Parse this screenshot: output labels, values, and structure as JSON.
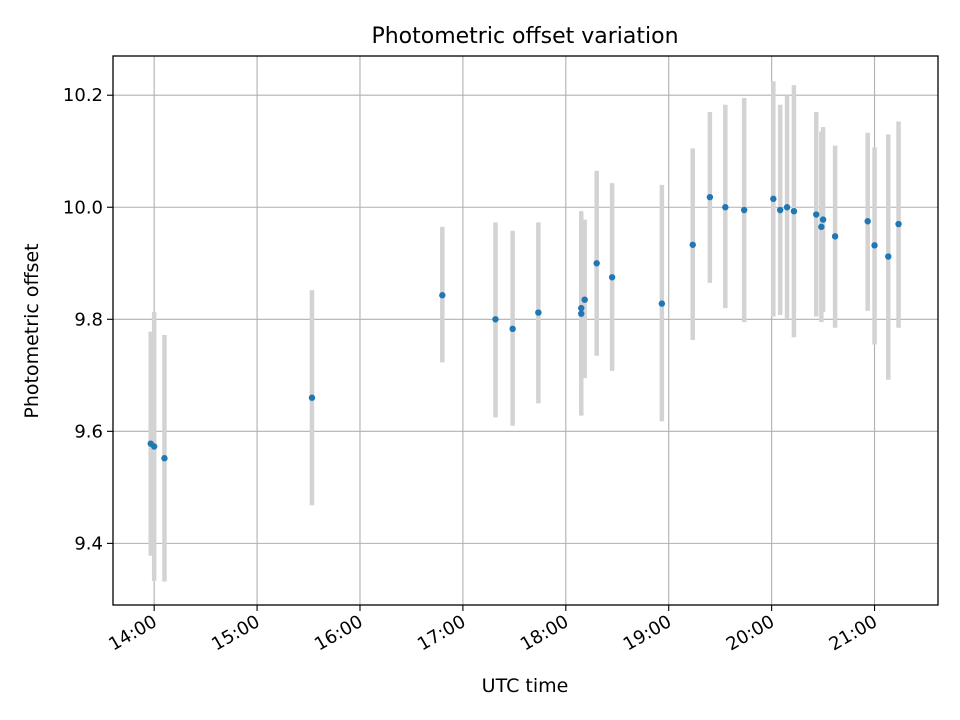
{
  "chart_data": {
    "type": "scatter",
    "title": "Photometric offset variation",
    "xlabel": "UTC time",
    "ylabel": "Photometric offset",
    "xlim": [
      "13:36",
      "21:37"
    ],
    "ylim": [
      9.29,
      10.27
    ],
    "grid": true,
    "x_ticks": [
      "14:00",
      "15:00",
      "16:00",
      "17:00",
      "18:00",
      "19:00",
      "20:00",
      "21:00"
    ],
    "y_ticks": [
      9.4,
      9.6,
      9.8,
      10.0,
      10.2
    ],
    "y_tick_labels": [
      "9.4",
      "9.6",
      "9.8",
      "10.0",
      "10.2"
    ],
    "colors": {
      "marker": "#1f77b4",
      "errorbar": "#d3d3d3",
      "grid": "#b0b0b0"
    },
    "series": [
      {
        "points": [
          {
            "x": "13:58",
            "y": 9.578,
            "ylo": 9.378,
            "yhi": 9.778
          },
          {
            "x": "14:00",
            "y": 9.573,
            "ylo": 9.333,
            "yhi": 9.813
          },
          {
            "x": "14:06",
            "y": 9.552,
            "ylo": 9.332,
            "yhi": 9.772
          },
          {
            "x": "15:32",
            "y": 9.66,
            "ylo": 9.468,
            "yhi": 9.852
          },
          {
            "x": "16:48",
            "y": 9.843,
            "ylo": 9.723,
            "yhi": 9.965
          },
          {
            "x": "17:19",
            "y": 9.8,
            "ylo": 9.625,
            "yhi": 9.973
          },
          {
            "x": "17:29",
            "y": 9.783,
            "ylo": 9.61,
            "yhi": 9.958
          },
          {
            "x": "17:44",
            "y": 9.812,
            "ylo": 9.65,
            "yhi": 9.973
          },
          {
            "x": "18:09",
            "y": 9.82,
            "ylo": 9.65,
            "yhi": 9.993
          },
          {
            "x": "18:09",
            "y": 9.81,
            "ylo": 9.628,
            "yhi": 9.99
          },
          {
            "x": "18:11",
            "y": 9.835,
            "ylo": 9.695,
            "yhi": 9.978
          },
          {
            "x": "18:18",
            "y": 9.9,
            "ylo": 9.735,
            "yhi": 10.065
          },
          {
            "x": "18:27",
            "y": 9.875,
            "ylo": 9.708,
            "yhi": 10.043
          },
          {
            "x": "18:56",
            "y": 9.828,
            "ylo": 9.618,
            "yhi": 10.04
          },
          {
            "x": "19:14",
            "y": 9.933,
            "ylo": 9.763,
            "yhi": 10.105
          },
          {
            "x": "19:24",
            "y": 10.018,
            "ylo": 9.865,
            "yhi": 10.17
          },
          {
            "x": "19:33",
            "y": 10.0,
            "ylo": 9.82,
            "yhi": 10.183
          },
          {
            "x": "19:44",
            "y": 9.995,
            "ylo": 9.795,
            "yhi": 10.195
          },
          {
            "x": "20:01",
            "y": 10.015,
            "ylo": 9.805,
            "yhi": 10.225
          },
          {
            "x": "20:05",
            "y": 9.995,
            "ylo": 9.808,
            "yhi": 10.183
          },
          {
            "x": "20:09",
            "y": 10.0,
            "ylo": 9.8,
            "yhi": 10.2
          },
          {
            "x": "20:13",
            "y": 9.993,
            "ylo": 9.768,
            "yhi": 10.218
          },
          {
            "x": "20:26",
            "y": 9.987,
            "ylo": 9.805,
            "yhi": 10.17
          },
          {
            "x": "20:29",
            "y": 9.965,
            "ylo": 9.795,
            "yhi": 10.135
          },
          {
            "x": "20:30",
            "y": 9.978,
            "ylo": 9.813,
            "yhi": 10.143
          },
          {
            "x": "20:37",
            "y": 9.948,
            "ylo": 9.785,
            "yhi": 10.11
          },
          {
            "x": "20:56",
            "y": 9.975,
            "ylo": 9.815,
            "yhi": 10.133
          },
          {
            "x": "21:00",
            "y": 9.932,
            "ylo": 9.755,
            "yhi": 10.107
          },
          {
            "x": "21:08",
            "y": 9.912,
            "ylo": 9.692,
            "yhi": 10.13
          },
          {
            "x": "21:14",
            "y": 9.97,
            "ylo": 9.785,
            "yhi": 10.153
          }
        ]
      }
    ]
  }
}
